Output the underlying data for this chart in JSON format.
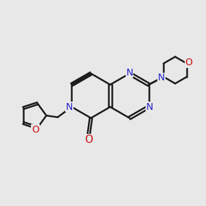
{
  "bg_color": "#e8e8e8",
  "bond_color": "#1a1a1a",
  "N_color": "#2222cc",
  "O_color": "#cc1111",
  "bond_width": 1.8,
  "dbo": 0.07,
  "figsize": [
    3.0,
    3.0
  ],
  "dpi": 100,
  "xlim": [
    0,
    10
  ],
  "ylim": [
    0,
    10
  ]
}
